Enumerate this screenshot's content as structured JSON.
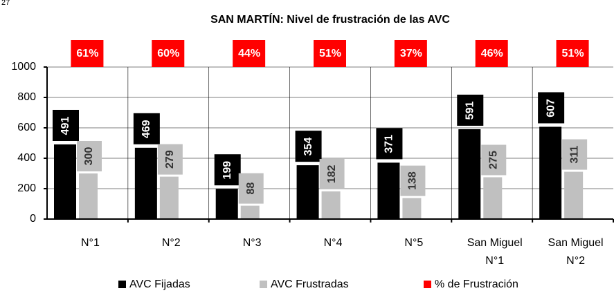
{
  "page_number": "27",
  "chart_data": {
    "type": "bar",
    "title": "SAN MARTÍN:  Nivel de frustración de las AVC",
    "categories": [
      "N°1",
      "N°2",
      "N°3",
      "N°4",
      "N°5",
      "San Miguel\nN°1",
      "San Miguel\nN°2"
    ],
    "series": [
      {
        "name": "AVC Fijadas",
        "color": "#000000",
        "values": [
          491,
          469,
          199,
          354,
          371,
          591,
          607
        ]
      },
      {
        "name": "AVC Frustradas",
        "color": "#c0c0c0",
        "values": [
          300,
          279,
          88,
          182,
          138,
          275,
          311
        ]
      },
      {
        "name": "% de Frustración",
        "color": "#ff0000",
        "values": [
          61,
          60,
          44,
          51,
          37,
          46,
          51
        ],
        "value_labels": [
          "61%",
          "60%",
          "44%",
          "51%",
          "37%",
          "46%",
          "51%"
        ]
      }
    ],
    "ylim": [
      0,
      1000
    ],
    "yticks": [
      0,
      200,
      400,
      600,
      800,
      1000
    ],
    "grid": true
  }
}
